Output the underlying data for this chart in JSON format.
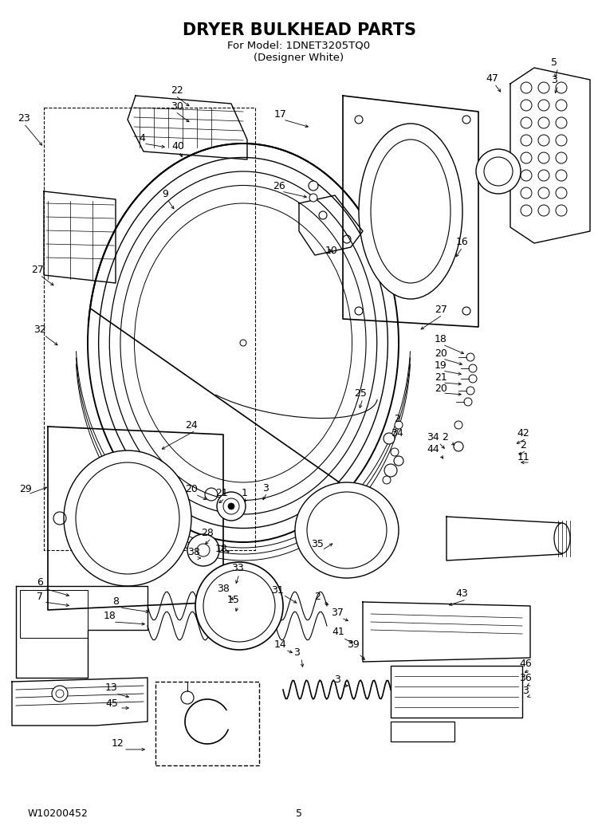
{
  "title_line1": "DRYER BULKHEAD PARTS",
  "title_line2": "For Model: 1DNET3205TQ0",
  "title_line3": "(Designer White)",
  "footer_left": "W10200452",
  "footer_center": "5",
  "background_color": "#ffffff",
  "figsize": [
    7.5,
    10.36
  ],
  "dpi": 100,
  "title_fontsize": 15,
  "subtitle_fontsize": 9.5,
  "footer_fontsize": 9,
  "label_fontsize": 9
}
